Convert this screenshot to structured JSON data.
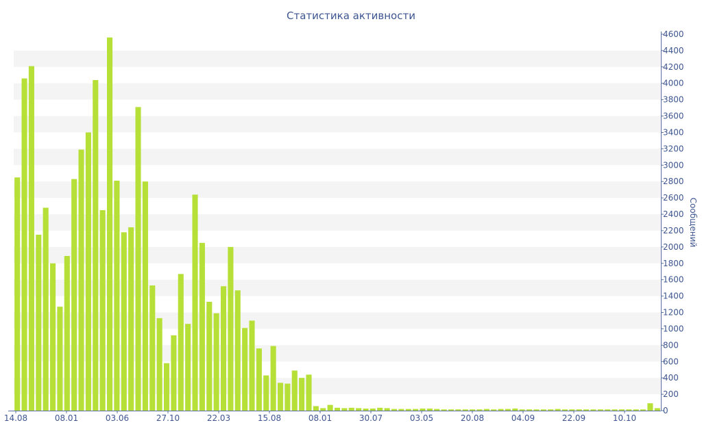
{
  "chart_data": {
    "type": "bar",
    "title": "Статистика активности",
    "ylabel": "Сообщений",
    "xlabel": "",
    "ylim": [
      0,
      4600
    ],
    "y_ticks": [
      0,
      200,
      400,
      600,
      800,
      1000,
      1200,
      1400,
      1600,
      1800,
      2000,
      2200,
      2400,
      2600,
      2800,
      3000,
      3200,
      3400,
      3600,
      3800,
      4000,
      4200,
      4400,
      4600
    ],
    "x_tick_labels": [
      "14.08",
      "08.01",
      "03.06",
      "27.10",
      "22.03",
      "15.08",
      "08.01",
      "30.07",
      "03.05",
      "20.08",
      "04.09",
      "22.09",
      "10.10"
    ],
    "grid": "horizontal-bands",
    "y_axis_position": "right",
    "bar_color": "#b6e038",
    "series": [
      {
        "values": [
          2850,
          4060,
          4210,
          2150,
          2480,
          1800,
          1270,
          1890,
          2830,
          3190,
          3400,
          4040,
          2450,
          4560,
          2810,
          2180,
          2240,
          3710,
          2800,
          1530,
          1130,
          580,
          920,
          1670,
          1060,
          2640,
          2050,
          1330,
          1190,
          1520,
          2000,
          1470,
          1010,
          1100,
          760,
          430,
          790,
          340,
          330,
          490,
          400,
          440,
          55,
          30,
          70,
          35,
          30,
          35,
          30,
          25,
          25,
          35,
          30,
          20,
          20,
          20,
          20,
          25,
          25,
          20,
          15,
          15,
          15,
          15,
          15,
          15,
          20,
          15,
          20,
          20,
          25,
          15,
          15,
          15,
          15,
          15,
          20,
          15,
          15,
          15,
          15,
          15,
          15,
          15,
          15,
          15,
          15,
          15,
          15,
          90,
          30
        ]
      }
    ]
  }
}
